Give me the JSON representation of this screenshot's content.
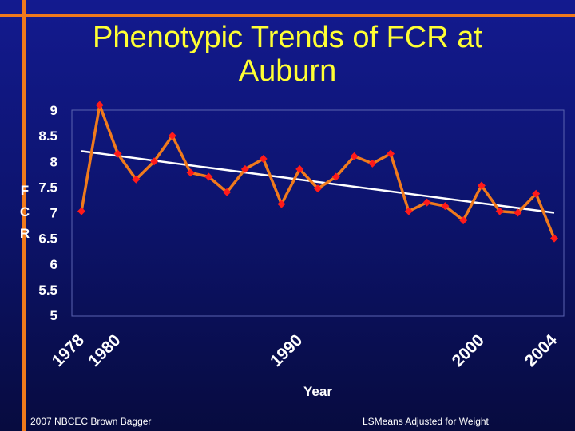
{
  "slide": {
    "title_line1": "Phenotypic Trends of FCR at",
    "title_line2": "Auburn",
    "footer_left": "2007 NBCEC Brown Bagger",
    "footer_right": "LSMeans Adjusted for Weight"
  },
  "colors": {
    "accent": "#f07a1c",
    "title": "#ffff33",
    "series": "#ff1a1a",
    "trend": "#ffffff",
    "background": "#0d1470"
  },
  "chart_data": {
    "type": "line",
    "title": "Phenotypic Trends of FCR at Auburn",
    "xlabel": "Year",
    "ylabel": "FCR",
    "ylabel_letters": [
      "F",
      "C",
      "R"
    ],
    "ylim": [
      5,
      9
    ],
    "yticks": [
      "9",
      "8.5",
      "8",
      "7.5",
      "7",
      "6.5",
      "6",
      "5.5",
      "5"
    ],
    "xlim": [
      1978,
      2004
    ],
    "xticks": [
      "1978",
      "1980",
      "1990",
      "2000",
      "2004"
    ],
    "grid": false,
    "legend": "none",
    "series": [
      {
        "x": [
          1978,
          1979,
          1980,
          1981,
          1982,
          1983,
          1984,
          1985,
          1986,
          1987,
          1988,
          1989,
          1990,
          1991,
          1992,
          1993,
          1994,
          1995,
          1996,
          1997,
          1998,
          1999,
          2000,
          2001,
          2002,
          2003,
          2004
        ],
        "values": [
          7.03,
          9.1,
          8.15,
          7.65,
          8.0,
          8.5,
          7.78,
          7.7,
          7.4,
          7.85,
          8.05,
          7.17,
          7.85,
          7.47,
          7.7,
          8.1,
          7.96,
          8.15,
          7.03,
          7.2,
          7.13,
          6.85,
          7.53,
          7.03,
          7.0,
          7.37,
          6.5
        ]
      },
      {
        "x": [
          1978,
          2004
        ],
        "values": [
          8.2,
          7.0
        ]
      }
    ]
  }
}
